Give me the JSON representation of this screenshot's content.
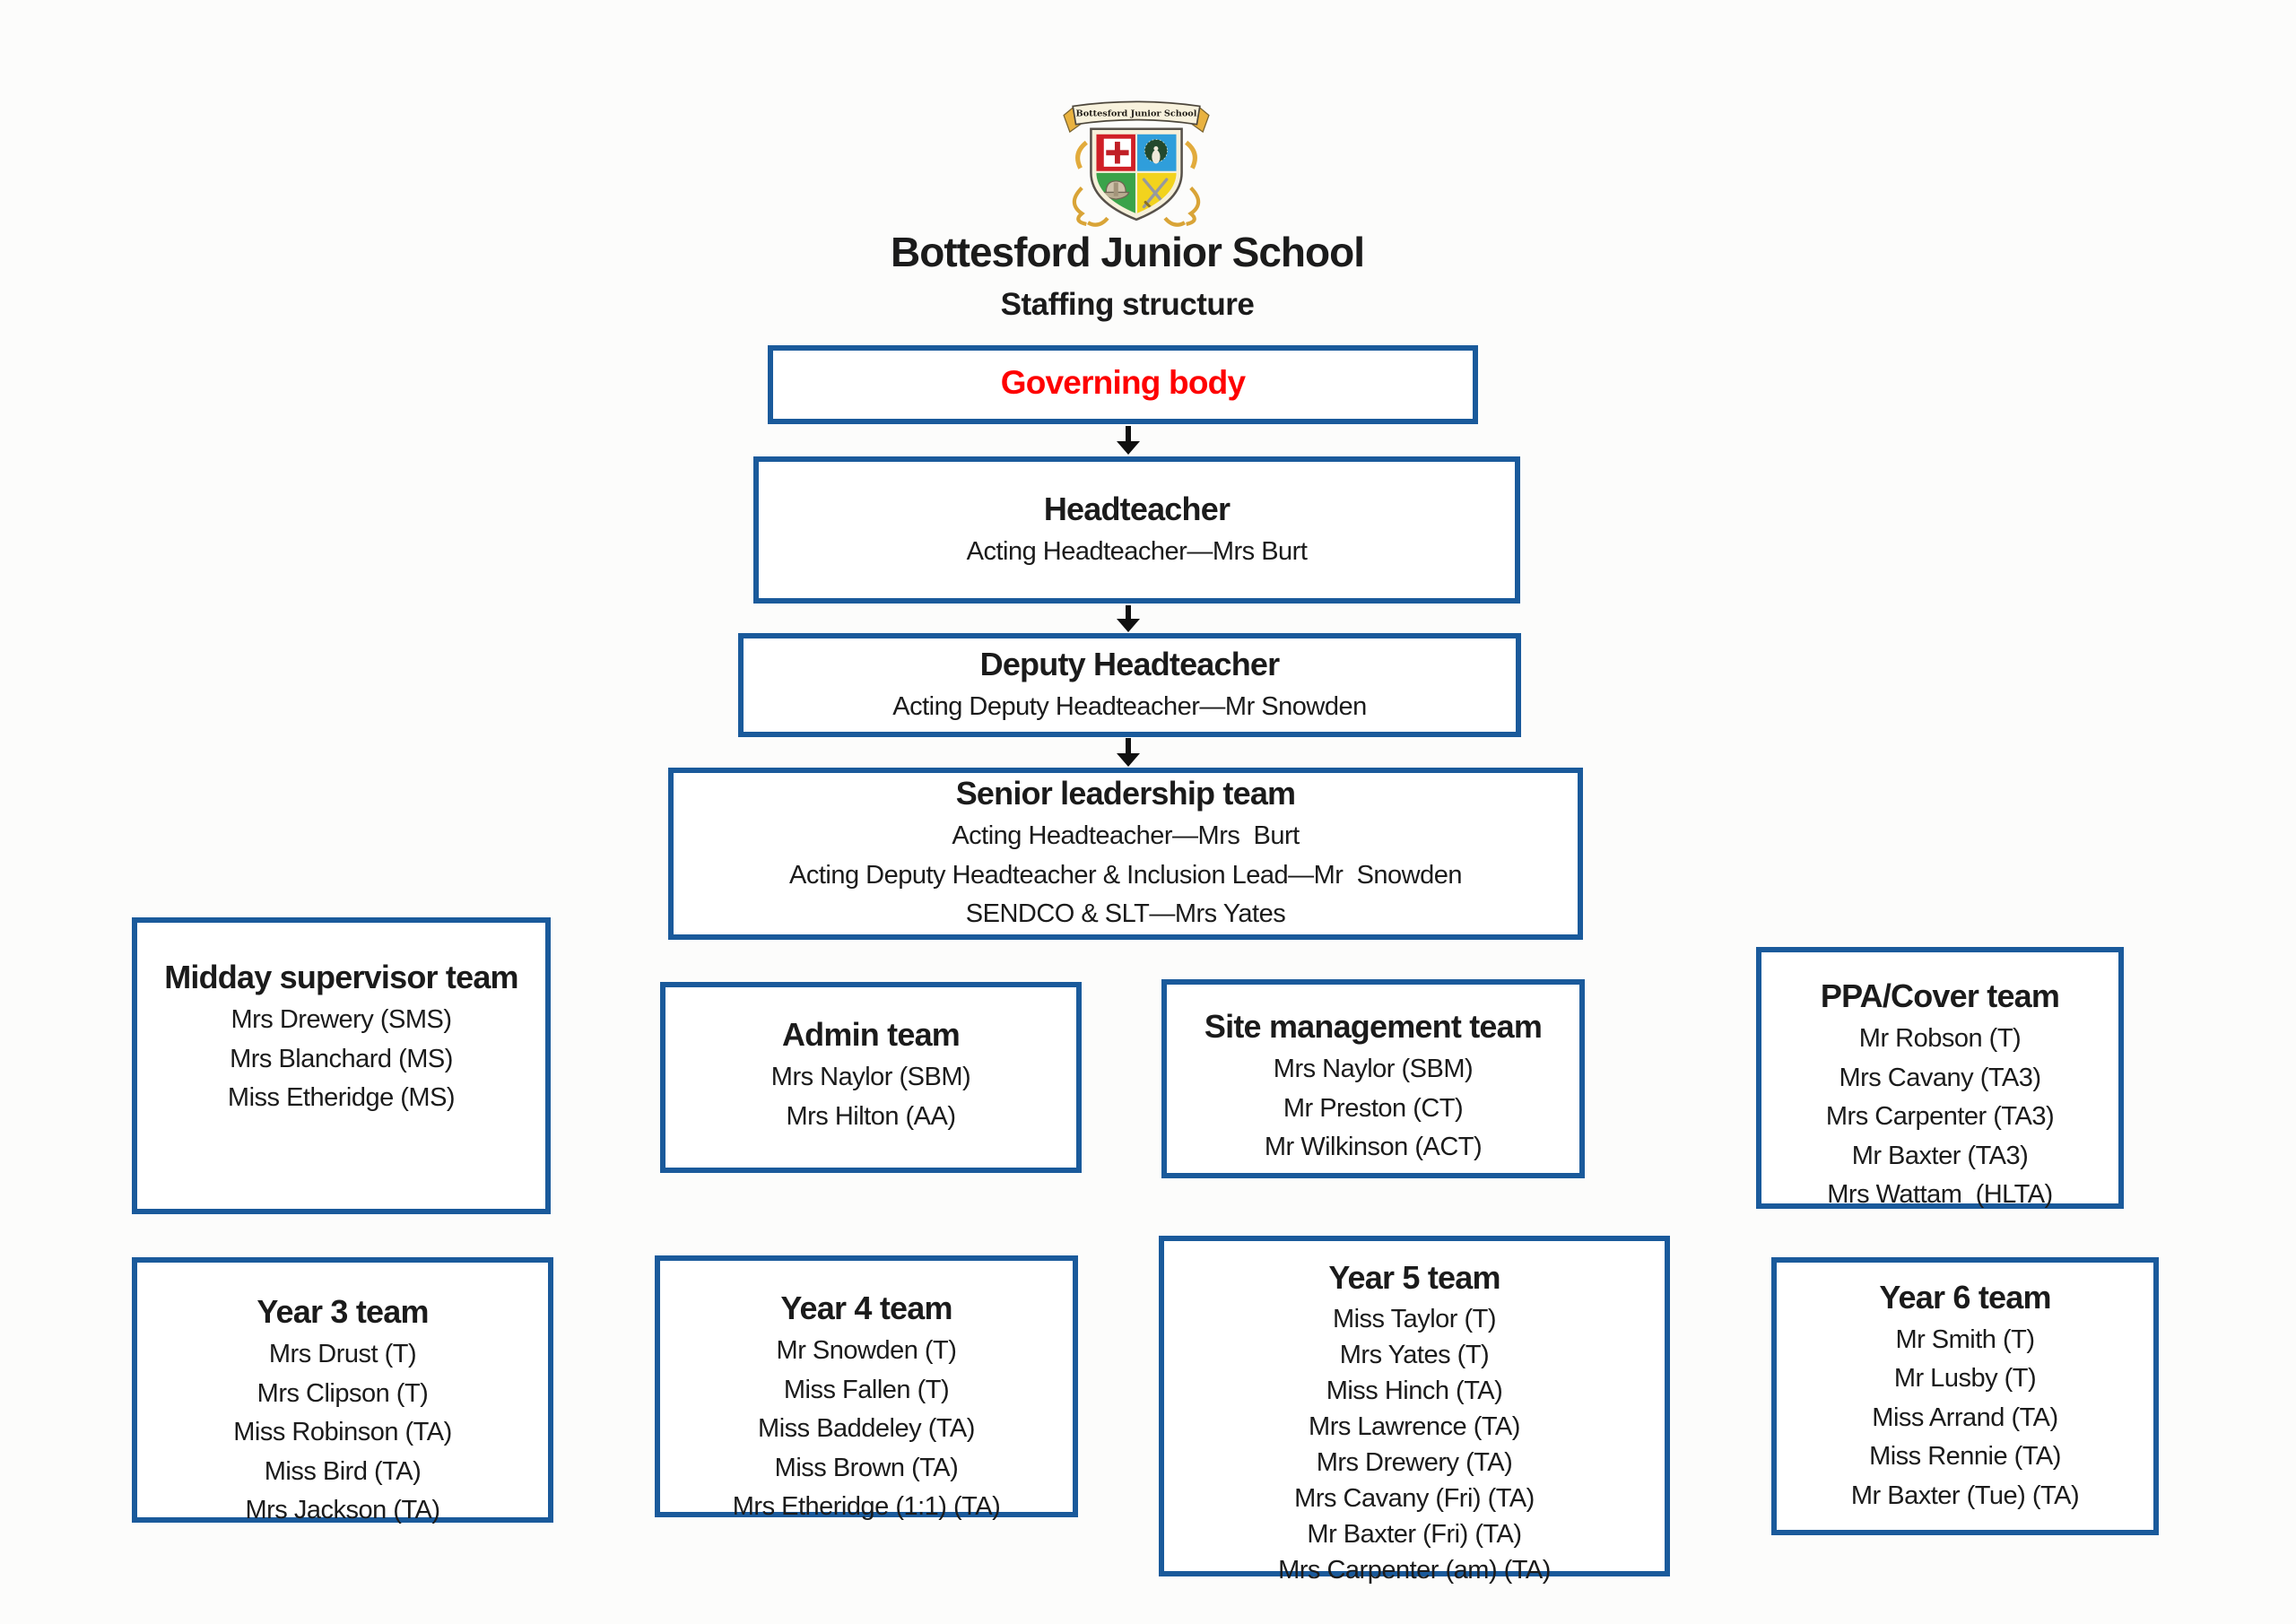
{
  "header": {
    "school_name": "Bottesford Junior School",
    "page_subtitle": "Staffing structure"
  },
  "crest": {
    "banner_text": "Bottesford Junior School"
  },
  "colors": {
    "box_border": "#1a5a9b",
    "governing_title": "#fe0000",
    "arrow": "#101010"
  },
  "org_chart": {
    "governing_body": {
      "title": "Governing body",
      "members": []
    },
    "headteacher": {
      "title": "Headteacher",
      "members": [
        "Acting Headteacher—Mrs Burt"
      ]
    },
    "deputy_headteacher": {
      "title": "Deputy Headteacher",
      "members": [
        "Acting Deputy Headteacher—Mr Snowden"
      ]
    },
    "senior_leadership_team": {
      "title": "Senior leadership team",
      "members": [
        "Acting Headteacher—Mrs  Burt",
        "Acting Deputy Headteacher & Inclusion Lead—Mr  Snowden",
        "SENDCO & SLT—Mrs Yates"
      ]
    },
    "midday_supervisor_team": {
      "title": "Midday supervisor team",
      "members": [
        "Mrs Drewery (SMS)",
        "Mrs Blanchard (MS)",
        "Miss Etheridge (MS)"
      ]
    },
    "admin_team": {
      "title": "Admin team",
      "members": [
        "Mrs Naylor (SBM)",
        "Mrs Hilton (AA)"
      ]
    },
    "site_management_team": {
      "title": "Site management team",
      "members": [
        "Mrs Naylor (SBM)",
        "Mr Preston (CT)",
        "Mr Wilkinson (ACT)"
      ]
    },
    "ppa_cover_team": {
      "title": "PPA/Cover team",
      "members": [
        "Mr Robson (T)",
        "Mrs Cavany (TA3)",
        "Mrs Carpenter (TA3)",
        "Mr Baxter (TA3)",
        "Mrs Wattam  (HLTA)"
      ]
    },
    "year_3_team": {
      "title": "Year 3 team",
      "members": [
        "Mrs Drust (T)",
        "Mrs Clipson (T)",
        "Miss Robinson (TA)",
        "Miss Bird (TA)",
        "Mrs Jackson (TA)"
      ]
    },
    "year_4_team": {
      "title": "Year 4 team",
      "members": [
        "Mr Snowden (T)",
        "Miss Fallen (T)",
        "Miss Baddeley (TA)",
        "Miss Brown (TA)",
        "Mrs Etheridge (1:1) (TA)"
      ]
    },
    "year_5_team": {
      "title": "Year 5 team",
      "members": [
        "Miss Taylor (T)",
        "Mrs Yates (T)",
        "Miss Hinch (TA)",
        "Mrs Lawrence (TA)",
        "Mrs Drewery (TA)",
        "Mrs Cavany (Fri) (TA)",
        "Mr Baxter (Fri) (TA)",
        "Mrs Carpenter (am) (TA)"
      ]
    },
    "year_6_team": {
      "title": "Year 6 team",
      "members": [
        "Mr Smith (T)",
        "Mr Lusby (T)",
        "Miss Arrand (TA)",
        "Miss Rennie (TA)",
        "Mr Baxter (Tue) (TA)"
      ]
    }
  }
}
